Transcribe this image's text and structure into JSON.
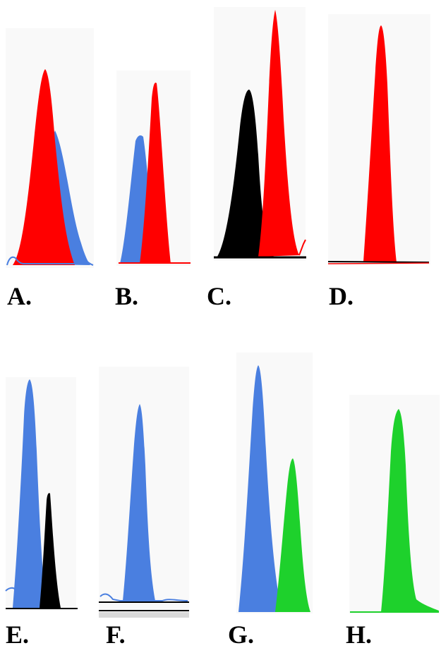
{
  "colors": {
    "red": "#ff0000",
    "blue": "#4a7fe0",
    "black": "#000000",
    "green": "#1ed12c",
    "panel_bg": "#f9f9f9"
  },
  "panels": [
    {
      "id": "a",
      "label": "A.",
      "peaks": [
        "blue",
        "red"
      ]
    },
    {
      "id": "b",
      "label": "B.",
      "peaks": [
        "blue",
        "red"
      ]
    },
    {
      "id": "c",
      "label": "C.",
      "peaks": [
        "black",
        "red"
      ]
    },
    {
      "id": "d",
      "label": "D.",
      "peaks": [
        "red"
      ]
    },
    {
      "id": "e",
      "label": "E.",
      "peaks": [
        "blue",
        "black"
      ]
    },
    {
      "id": "f",
      "label": "F.",
      "peaks": [
        "blue"
      ]
    },
    {
      "id": "g",
      "label": "G.",
      "peaks": [
        "blue",
        "green"
      ]
    },
    {
      "id": "h",
      "label": "H.",
      "peaks": [
        "green"
      ]
    }
  ]
}
